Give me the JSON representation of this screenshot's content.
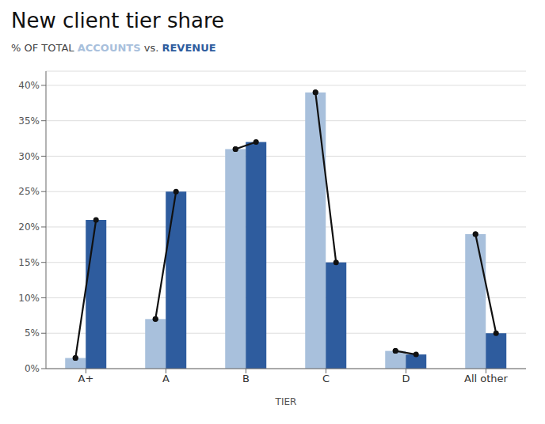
{
  "chart_data": {
    "type": "bar",
    "title": "New client tier share",
    "subtitle": "% OF TOTAL ACCOUNTS vs. REVENUE",
    "xlabel": "TIER",
    "categories": [
      "A+",
      "A",
      "B",
      "C",
      "D",
      "All other"
    ],
    "series": [
      {
        "name": "ACCOUNTS",
        "color": "#a8c0dc",
        "values": [
          1.5,
          7.0,
          31.0,
          39.0,
          2.5,
          19.0
        ]
      },
      {
        "name": "REVENUE",
        "color": "#2e5c9e",
        "values": [
          21.0,
          25.0,
          32.0,
          15.0,
          2.0,
          5.0
        ]
      }
    ],
    "ylim": [
      0,
      42
    ],
    "yticks": [
      {
        "value": 0,
        "label": "0%"
      },
      {
        "value": 5,
        "label": "5%"
      },
      {
        "value": 10,
        "label": "10%"
      },
      {
        "value": 15,
        "label": "15%"
      },
      {
        "value": 20,
        "label": "20%"
      },
      {
        "value": 25,
        "label": "25%"
      },
      {
        "value": 30,
        "label": "30%"
      },
      {
        "value": 35,
        "label": "35%"
      },
      {
        "value": 40,
        "label": "40%"
      }
    ],
    "grid": true
  }
}
